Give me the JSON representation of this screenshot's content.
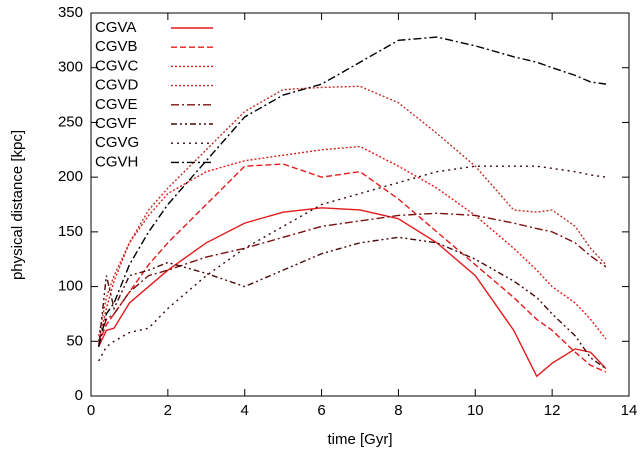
{
  "chart_data": {
    "type": "line",
    "xlabel": "time [Gyr]",
    "ylabel": "physical distance [kpc]",
    "x": [
      0.2,
      0.4,
      0.6,
      1,
      1.5,
      2,
      3,
      4,
      5,
      6,
      7,
      8,
      9,
      10,
      11,
      11.6,
      12,
      12.6,
      13,
      13.4
    ],
    "series": [
      {
        "name": "CGVA",
        "color": "#e41a1c",
        "style": "solid",
        "values": [
          45,
          60,
          62,
          85,
          100,
          115,
          140,
          158,
          168,
          172,
          170,
          162,
          140,
          110,
          60,
          18,
          30,
          43,
          40,
          25
        ]
      },
      {
        "name": "CGVB",
        "color": "#e41a1c",
        "style": "dashed",
        "values": [
          48,
          65,
          75,
          95,
          120,
          140,
          175,
          210,
          212,
          200,
          205,
          180,
          150,
          120,
          90,
          70,
          60,
          40,
          28,
          22
        ]
      },
      {
        "name": "CGVC",
        "color": "#e41a1c",
        "style": "dotted",
        "values": [
          50,
          80,
          105,
          140,
          165,
          185,
          205,
          215,
          220,
          225,
          228,
          210,
          190,
          165,
          135,
          115,
          100,
          85,
          70,
          52
        ]
      },
      {
        "name": "CGVD",
        "color": "#c0302a",
        "style": "dotted",
        "values": [
          55,
          90,
          110,
          140,
          170,
          190,
          225,
          260,
          280,
          282,
          283,
          268,
          240,
          210,
          170,
          168,
          170,
          155,
          135,
          120
        ]
      },
      {
        "name": "CGVE",
        "color": "#7a1010",
        "style": "dash-dot",
        "values": [
          50,
          70,
          75,
          95,
          110,
          115,
          127,
          135,
          145,
          155,
          160,
          165,
          167,
          165,
          158,
          153,
          150,
          140,
          128,
          118
        ]
      },
      {
        "name": "CGVF",
        "color": "#4a0a0a",
        "style": "dash-dot-dot",
        "values": [
          45,
          110,
          80,
          110,
          115,
          122,
          112,
          100,
          115,
          130,
          140,
          145,
          140,
          125,
          105,
          90,
          75,
          55,
          35,
          25
        ]
      },
      {
        "name": "CGVG",
        "color": "#3a0808",
        "style": "sparse-dotted",
        "values": [
          32,
          45,
          50,
          58,
          62,
          80,
          110,
          135,
          155,
          175,
          185,
          195,
          205,
          210,
          210,
          210,
          208,
          205,
          202,
          200
        ]
      },
      {
        "name": "CGVH",
        "color": "#000000",
        "style": "dash-dot",
        "values": [
          45,
          75,
          85,
          120,
          150,
          175,
          215,
          255,
          275,
          285,
          305,
          325,
          328,
          320,
          310,
          305,
          300,
          293,
          287,
          285
        ]
      }
    ],
    "xlim": [
      0,
      14
    ],
    "xticks": [
      0,
      2,
      4,
      6,
      8,
      10,
      12,
      14
    ],
    "ylim": [
      0,
      350
    ],
    "yticks": [
      0,
      50,
      100,
      150,
      200,
      250,
      300,
      350
    ],
    "legend": "upper-left"
  }
}
